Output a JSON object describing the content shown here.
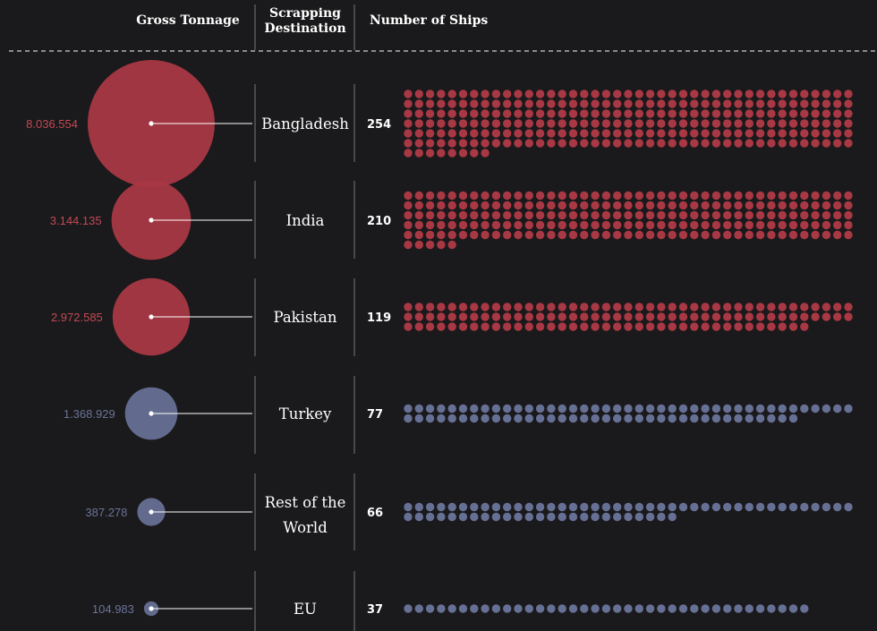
{
  "colors": {
    "background": "#1a191b",
    "red": "#a83844",
    "blue": "#667095",
    "red_text": "#c04a55",
    "blue_text": "#6c7499",
    "line": "#ffffff",
    "divider": "#808080"
  },
  "header": {
    "gross_tonnage": "Gross Tonnage",
    "scrapping_line1": "Scrapping",
    "scrapping_line2": "Destination",
    "ships": "Number of Ships"
  },
  "chart_data": {
    "type": "bubble-and-dot-matrix",
    "columns": [
      "Gross Tonnage",
      "Scrapping Destination",
      "Number of Ships"
    ],
    "rows": [
      {
        "destination": "Bangladesh",
        "tonnage_label": "8.036.554",
        "tonnage": 8036554,
        "ships_label": "254",
        "ships": 254,
        "color": "red"
      },
      {
        "destination": "India",
        "tonnage_label": "3.144.135",
        "tonnage": 3144135,
        "ships_label": "210",
        "ships": 210,
        "color": "red"
      },
      {
        "destination": "Pakistan",
        "tonnage_label": "2.972.585",
        "tonnage": 2972585,
        "ships_label": "119",
        "ships": 119,
        "color": "red"
      },
      {
        "destination": "Turkey",
        "tonnage_label": "1.368.929",
        "tonnage": 1368929,
        "ships_label": "77",
        "ships": 77,
        "color": "blue"
      },
      {
        "destination": "Rest of the World",
        "tonnage_label": "387.278",
        "tonnage": 387278,
        "ships_label": "66",
        "ships": 66,
        "color": "blue"
      },
      {
        "destination": "EU",
        "tonnage_label": "104.983",
        "tonnage": 104983,
        "ships_label": "37",
        "ships": 37,
        "color": "blue"
      }
    ]
  }
}
